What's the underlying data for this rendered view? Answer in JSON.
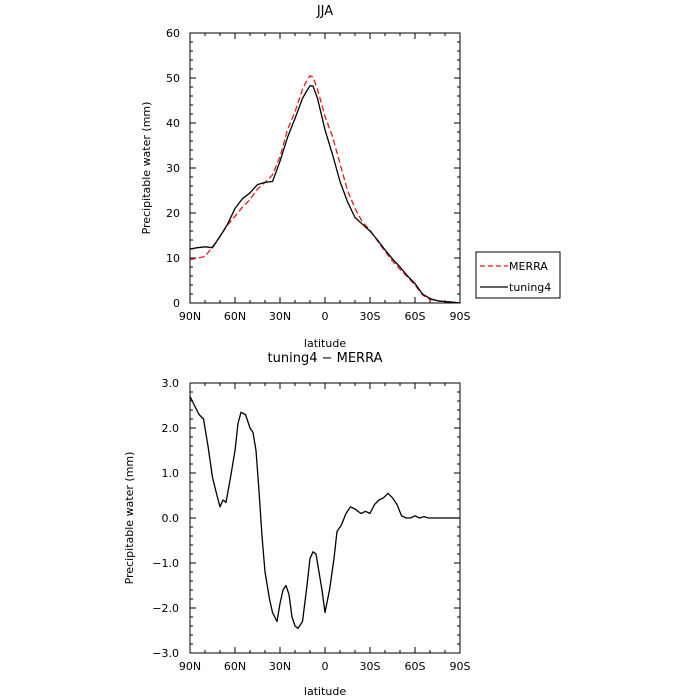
{
  "chart_data": [
    {
      "type": "line",
      "title": "JJA",
      "xlabel": "latitude",
      "ylabel": "Precipitable water (mm)",
      "xlim": [
        90,
        -90
      ],
      "ylim": [
        0,
        60
      ],
      "xticks": [
        90,
        60,
        30,
        0,
        -30,
        -60,
        -90
      ],
      "xtick_labels": [
        "90N",
        "60N",
        "30N",
        "0",
        "30S",
        "60S",
        "90S"
      ],
      "yticks": [
        0,
        10,
        20,
        30,
        40,
        50,
        60
      ],
      "ytick_labels": [
        "0",
        "10",
        "20",
        "30",
        "40",
        "50",
        "60"
      ],
      "legend_position": "right",
      "series": [
        {
          "name": "MERRA",
          "color": "#e41a1c",
          "style": "dashed",
          "x": [
            90,
            85,
            80,
            75,
            70,
            65,
            60,
            55,
            50,
            45,
            40,
            35,
            30,
            25,
            20,
            15,
            12,
            10,
            8,
            5,
            0,
            -5,
            -10,
            -15,
            -20,
            -25,
            -30,
            -35,
            -40,
            -45,
            -50,
            -55,
            -60,
            -65,
            -70,
            -75,
            -80,
            -85,
            -90
          ],
          "y": [
            9.6,
            10,
            10.3,
            12.5,
            14.8,
            17.3,
            19.3,
            21.3,
            23,
            25.3,
            26.8,
            28.5,
            32.5,
            38.5,
            42.5,
            47.5,
            49.5,
            50.5,
            50.2,
            47.5,
            41.5,
            37,
            31,
            25,
            21,
            18,
            16.2,
            13.8,
            11.5,
            9.3,
            7.5,
            5.8,
            4,
            1.8,
            0.8,
            0.5,
            0.3,
            0.2,
            0
          ]
        },
        {
          "name": "tuning4",
          "color": "#000000",
          "style": "solid",
          "x": [
            90,
            85,
            80,
            75,
            70,
            65,
            60,
            55,
            50,
            45,
            40,
            35,
            30,
            25,
            20,
            15,
            12,
            10,
            8,
            5,
            0,
            -5,
            -10,
            -15,
            -20,
            -25,
            -30,
            -35,
            -40,
            -45,
            -50,
            -55,
            -60,
            -65,
            -70,
            -75,
            -80,
            -85,
            -90
          ],
          "y": [
            12,
            12.3,
            12.5,
            12.3,
            14.8,
            17.5,
            21,
            23.2,
            24.5,
            26.3,
            26.8,
            27,
            31.5,
            36.8,
            41,
            45.5,
            47.2,
            48.3,
            48.2,
            45.5,
            38.5,
            33,
            27,
            22.5,
            19,
            17.5,
            16,
            14,
            11.8,
            9.8,
            8,
            6,
            4.3,
            2,
            1,
            0.5,
            0.3,
            0.2,
            0
          ]
        }
      ]
    },
    {
      "type": "line",
      "title": "tuning4 − MERRA",
      "xlabel": "latitude",
      "ylabel": "Precipitable water (mm)",
      "xlim": [
        90,
        -90
      ],
      "ylim": [
        -3,
        3
      ],
      "xticks": [
        90,
        60,
        30,
        0,
        -30,
        -60,
        -90
      ],
      "xtick_labels": [
        "90N",
        "60N",
        "30N",
        "0",
        "30S",
        "60S",
        "90S"
      ],
      "yticks": [
        -3,
        -2,
        -1,
        0,
        1,
        2,
        3
      ],
      "ytick_labels": [
        "−3.0",
        "−2.0",
        "−1.0",
        "0.0",
        "1.0",
        "2.0",
        "3.0"
      ],
      "series": [
        {
          "color": "#000000",
          "style": "solid",
          "x": [
            90,
            87,
            84,
            81,
            78,
            75,
            72,
            70,
            68,
            66,
            63,
            60,
            58,
            56,
            53,
            50,
            48,
            46,
            44,
            42,
            40,
            37,
            35,
            32,
            30,
            28,
            26,
            24,
            22,
            20,
            18,
            15,
            12,
            10,
            8,
            6,
            4,
            2,
            0,
            -3,
            -6,
            -8,
            -11,
            -14,
            -17,
            -20,
            -22,
            -24,
            -27,
            -30,
            -33,
            -36,
            -39,
            -42,
            -45,
            -48,
            -51,
            -54,
            -57,
            -60,
            -63,
            -66,
            -69,
            -72,
            -75,
            -78,
            -81,
            -84,
            -87,
            -90
          ],
          "y": [
            2.7,
            2.5,
            2.3,
            2.2,
            1.6,
            0.9,
            0.5,
            0.25,
            0.4,
            0.35,
            0.9,
            1.5,
            2.1,
            2.35,
            2.3,
            2.0,
            1.9,
            1.5,
            0.6,
            -0.4,
            -1.2,
            -1.8,
            -2.1,
            -2.3,
            -1.9,
            -1.6,
            -1.5,
            -1.7,
            -2.2,
            -2.4,
            -2.45,
            -2.3,
            -1.5,
            -0.9,
            -0.75,
            -0.8,
            -1.2,
            -1.6,
            -2.1,
            -1.6,
            -0.9,
            -0.3,
            -0.15,
            0.1,
            0.25,
            0.2,
            0.15,
            0.1,
            0.15,
            0.1,
            0.3,
            0.4,
            0.45,
            0.55,
            0.45,
            0.3,
            0.05,
            0,
            0,
            0.05,
            0,
            0.03,
            0,
            0,
            0,
            0,
            0,
            0,
            0,
            0
          ]
        }
      ]
    }
  ]
}
